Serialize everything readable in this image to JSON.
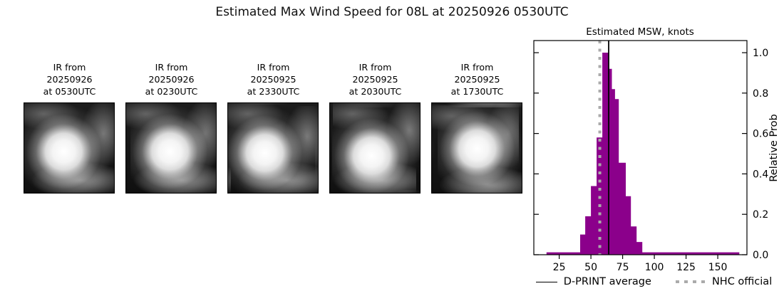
{
  "title": "Estimated Max Wind Speed for 08L at 20250926 0530UTC",
  "panels": [
    {
      "lines": [
        "IR from",
        "20250926",
        "at 0530UTC"
      ]
    },
    {
      "lines": [
        "IR from",
        "20250926",
        "at 0230UTC"
      ]
    },
    {
      "lines": [
        "IR from",
        "20250925",
        "at 2330UTC"
      ]
    },
    {
      "lines": [
        "IR from",
        "20250925",
        "at 2030UTC"
      ]
    },
    {
      "lines": [
        "IR from",
        "20250925",
        "at 1730UTC"
      ]
    }
  ],
  "chart_data": {
    "type": "bar",
    "title": "Estimated MSW, knots",
    "xlabel": "",
    "ylabel": "Relative Prob",
    "xlim": [
      5,
      173
    ],
    "ylim": [
      0,
      1.06
    ],
    "xticks": [
      25,
      50,
      75,
      100,
      125,
      150
    ],
    "yticks": [
      0.0,
      0.2,
      0.4,
      0.6,
      0.8,
      1.0
    ],
    "grid": false,
    "bar_color": "#8b008b",
    "bins": [
      {
        "x0": 15,
        "x1": 41.5,
        "p": 0.012
      },
      {
        "x0": 41.5,
        "x1": 45.5,
        "p": 0.1
      },
      {
        "x0": 45.5,
        "x1": 50,
        "p": 0.19
      },
      {
        "x0": 50,
        "x1": 54.5,
        "p": 0.34
      },
      {
        "x0": 54.5,
        "x1": 59,
        "p": 0.58
      },
      {
        "x0": 59,
        "x1": 64,
        "p": 1.0
      },
      {
        "x0": 64,
        "x1": 66.5,
        "p": 0.92
      },
      {
        "x0": 66.5,
        "x1": 69,
        "p": 0.82
      },
      {
        "x0": 69,
        "x1": 72,
        "p": 0.77
      },
      {
        "x0": 72,
        "x1": 77.5,
        "p": 0.455
      },
      {
        "x0": 77.5,
        "x1": 81.5,
        "p": 0.29
      },
      {
        "x0": 81.5,
        "x1": 86,
        "p": 0.14
      },
      {
        "x0": 86,
        "x1": 90.5,
        "p": 0.063
      },
      {
        "x0": 90.5,
        "x1": 167,
        "p": 0.012
      }
    ],
    "vlines": [
      {
        "label": "D-PRINT average",
        "x": 64,
        "style": "solid",
        "color": "#000000"
      },
      {
        "label": "NHC official",
        "x": 57,
        "style": "dotted",
        "color": "#ababab"
      }
    ],
    "legend": [
      "D-PRINT average",
      "NHC official"
    ],
    "legend_position": "bottom"
  }
}
